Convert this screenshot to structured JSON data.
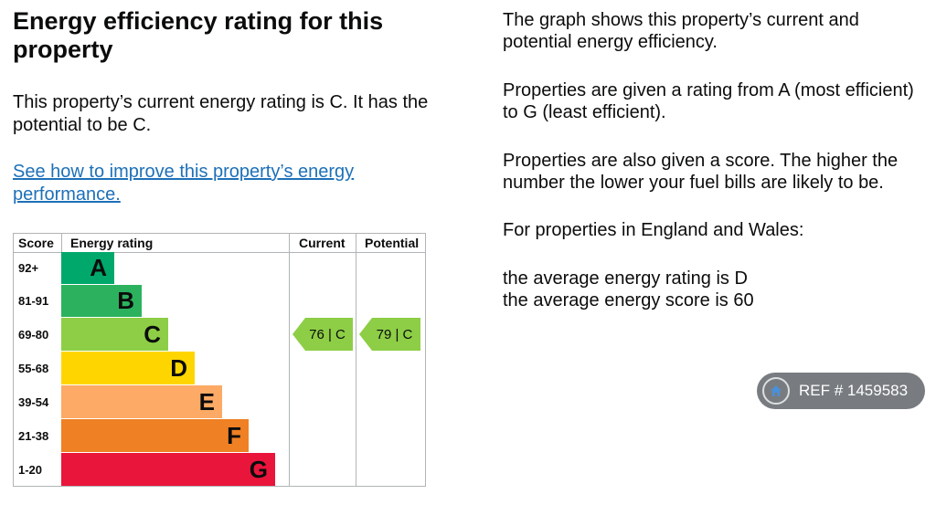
{
  "heading": "Energy efficiency rating for this property",
  "left": {
    "current_text": "This property’s current energy rating is C. It has the potential to be C.",
    "improve_link": "See how to improve this property’s energy performance."
  },
  "right": {
    "p1": "The graph shows this property’s current and potential energy efficiency.",
    "p2": "Properties are given a rating from A (most efficient) to G (least efficient).",
    "p3": "Properties are also given a score. The higher the number the lower your fuel bills are likely to be.",
    "p4": "For properties in England and Wales:",
    "avg_rating": "the average energy rating is D",
    "avg_score": "the average energy score is 60"
  },
  "table": {
    "headers": {
      "score": "Score",
      "rating": "Energy rating",
      "current": "Current",
      "potential": "Potential"
    },
    "bands": [
      {
        "score": "92+",
        "letter": "A",
        "color": "#00a86b"
      },
      {
        "score": "81-91",
        "letter": "B",
        "color": "#2cb25e"
      },
      {
        "score": "69-80",
        "letter": "C",
        "color": "#8dce46"
      },
      {
        "score": "55-68",
        "letter": "D",
        "color": "#ffd500"
      },
      {
        "score": "39-54",
        "letter": "E",
        "color": "#fcaa65"
      },
      {
        "score": "21-38",
        "letter": "F",
        "color": "#ef8023"
      },
      {
        "score": "1-20",
        "letter": "G",
        "color": "#e9153b"
      }
    ],
    "current": {
      "label": "76 | C",
      "score": 76,
      "band": "C",
      "color": "#8dce46"
    },
    "potential": {
      "label": "79 | C",
      "score": 79,
      "band": "C",
      "color": "#8dce46"
    }
  },
  "ref_badge": {
    "text": "REF # 1459583",
    "icon": "house-icon"
  }
}
